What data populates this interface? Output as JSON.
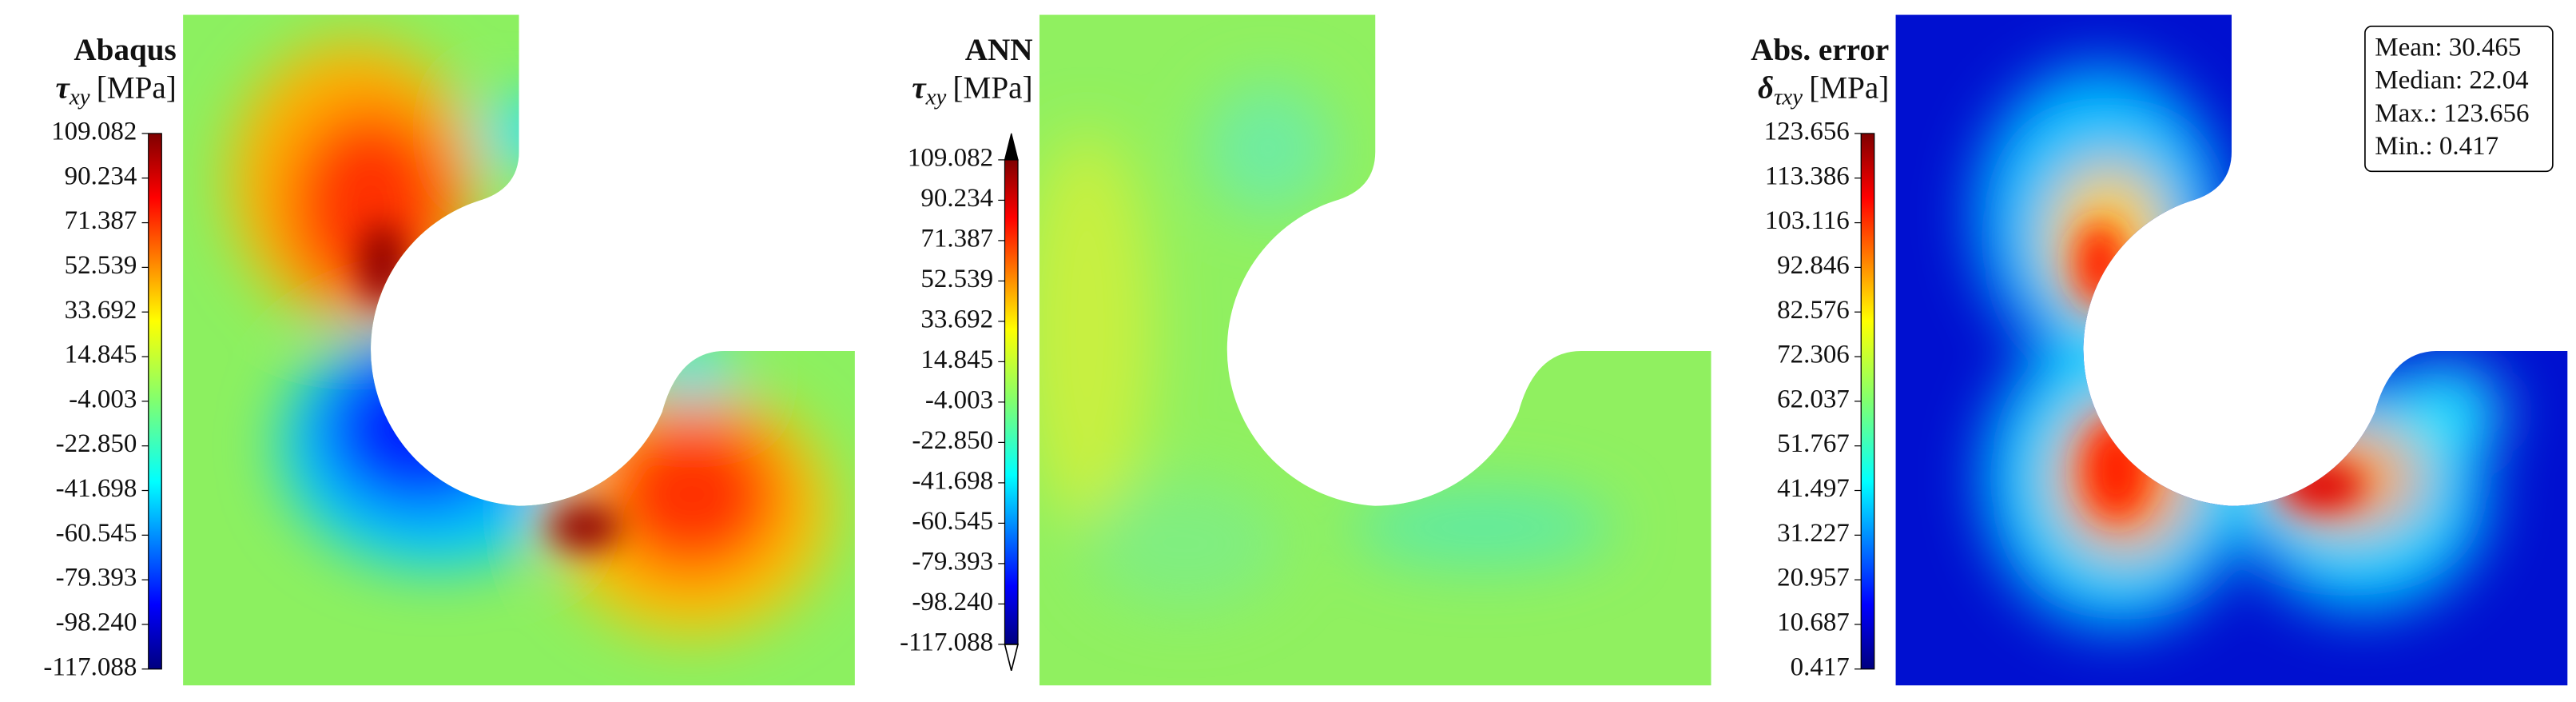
{
  "panels": [
    {
      "title": "Abaqus",
      "symbol": "τ",
      "subscript": "xy",
      "unit": "[MPa]",
      "colorbar": {
        "ticks": [
          "109.082",
          "90.234",
          "71.387",
          "52.539",
          "33.692",
          "14.845",
          "-4.003",
          "-22.850",
          "-41.698",
          "-60.545",
          "-79.393",
          "-98.240",
          "-117.088"
        ]
      }
    },
    {
      "title": "ANN",
      "symbol": "τ",
      "subscript": "xy",
      "unit": "[MPa]",
      "colorbar": {
        "ticks": [
          "109.082",
          "90.234",
          "71.387",
          "52.539",
          "33.692",
          "14.845",
          "-4.003",
          "-22.850",
          "-41.698",
          "-60.545",
          "-79.393",
          "-98.240",
          "-117.088"
        ]
      }
    },
    {
      "title": "Abs. error",
      "symbol": "δ",
      "subscript": "τxy",
      "unit": "[MPa]",
      "colorbar": {
        "ticks": [
          "123.656",
          "113.386",
          "103.116",
          "92.846",
          "82.576",
          "72.306",
          "62.037",
          "51.767",
          "41.497",
          "31.227",
          "20.957",
          "10.687",
          "0.417"
        ]
      },
      "stats": [
        "Mean: 30.465",
        "Median: 22.04",
        "Max.: 123.656",
        "Min.: 0.417"
      ]
    }
  ]
}
